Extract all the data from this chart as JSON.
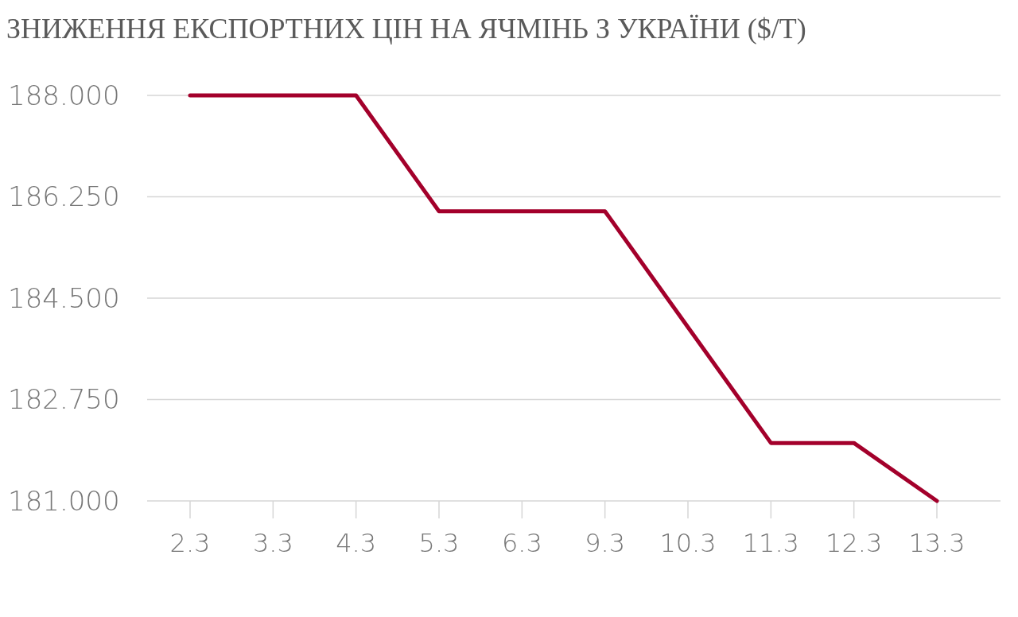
{
  "chart_data": {
    "type": "line",
    "title": "ЗНИЖЕННЯ ЕКСПОРТНИХ ЦІН НА ЯЧМІНЬ З УКРАЇНИ ($/Т)",
    "categories": [
      "2.3",
      "3.3",
      "4.3",
      "5.3",
      "6.3",
      "9.3",
      "10.3",
      "11.3",
      "12.3",
      "13.3"
    ],
    "series": [
      {
        "color": "#a3002b",
        "values": [
          188,
          188,
          188,
          186,
          186,
          186,
          184,
          182,
          182,
          181
        ]
      }
    ],
    "ylim": [
      181,
      188
    ],
    "yticks": [
      {
        "value": 181,
        "label": "181.000"
      },
      {
        "value": 182.75,
        "label": "182.750"
      },
      {
        "value": 184.5,
        "label": "184.500"
      },
      {
        "value": 186.25,
        "label": "186.250"
      },
      {
        "value": 188,
        "label": "188.000"
      }
    ],
    "grid": "y",
    "marker": "none",
    "line_style": "solid"
  }
}
